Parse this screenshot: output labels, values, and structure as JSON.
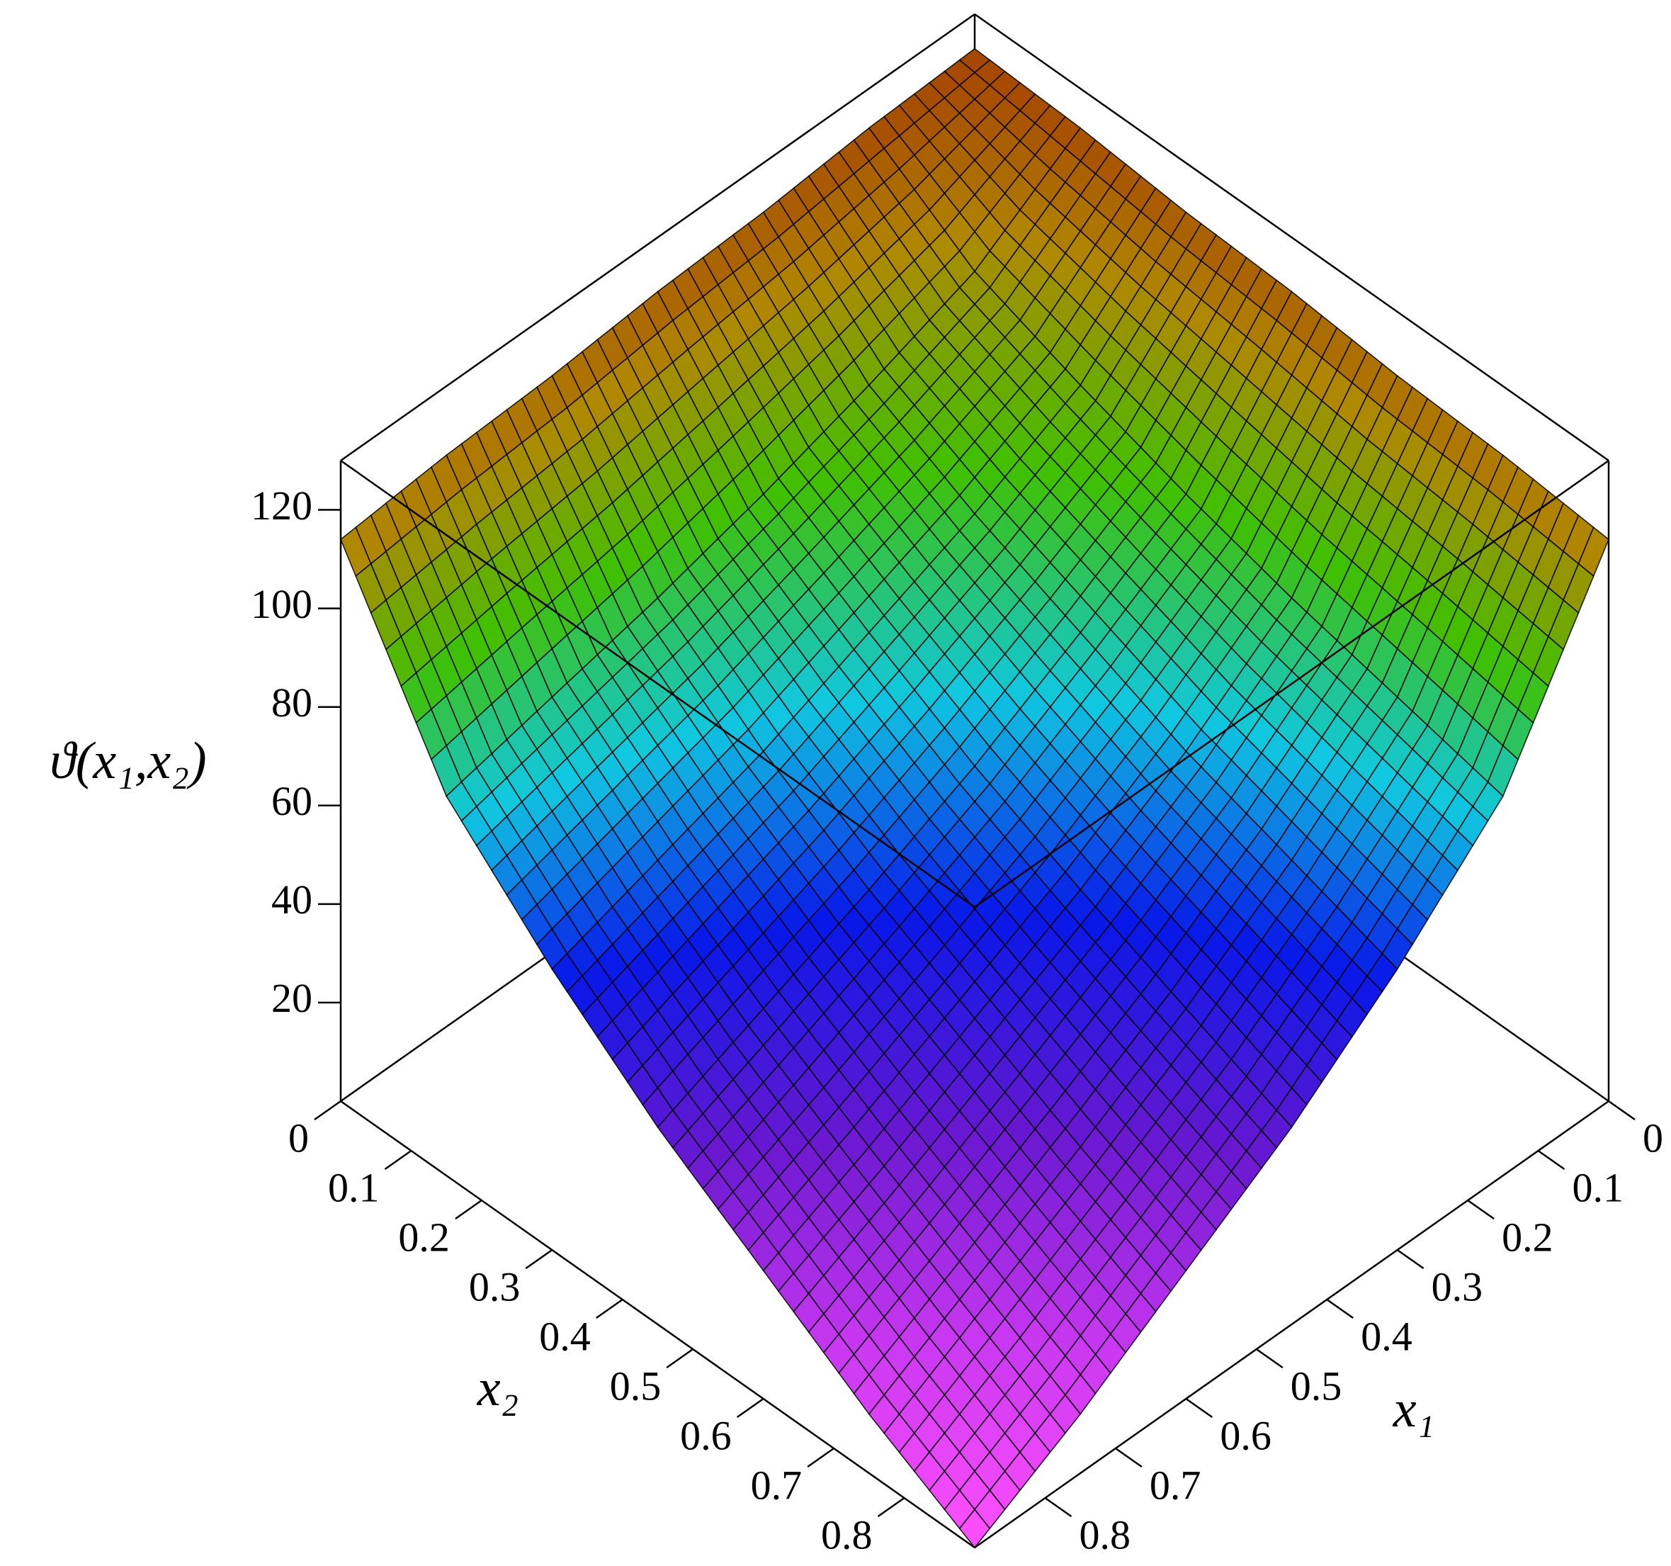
{
  "chart_data": {
    "type": "surface",
    "zlabel": "ϑ(x₁,x₂)",
    "x1label": "x₁",
    "x2label": "x₂",
    "x1": [
      0,
      0.15,
      0.3,
      0.45,
      0.6,
      0.75,
      0.9
    ],
    "x2": [
      0,
      0.15,
      0.3,
      0.45,
      0.6,
      0.75,
      0.9
    ],
    "z": [
      [
        123,
        122,
        120,
        119,
        117,
        116,
        114
      ],
      [
        122,
        108,
        100,
        93,
        87,
        82,
        77
      ],
      [
        120,
        100,
        89,
        80,
        71,
        64,
        57
      ],
      [
        119,
        93,
        80,
        68,
        58,
        49,
        40
      ],
      [
        117,
        87,
        71,
        58,
        47,
        36,
        26
      ],
      [
        116,
        82,
        64,
        49,
        36,
        24,
        12
      ],
      [
        114,
        77,
        57,
        40,
        26,
        12,
        0
      ]
    ],
    "x1lim": [
      0,
      0.9
    ],
    "x2lim": [
      0,
      0.9
    ],
    "zlim": [
      0,
      130
    ],
    "x1ticks": [
      0,
      0.1,
      0.2,
      0.3,
      0.4,
      0.5,
      0.6,
      0.7,
      0.8
    ],
    "x2ticks": [
      0,
      0.1,
      0.2,
      0.3,
      0.4,
      0.5,
      0.6,
      0.7,
      0.8
    ],
    "zticks": [
      20,
      40,
      60,
      80,
      100,
      120
    ],
    "colorscale": [
      "#ff50ff",
      "#c838f0",
      "#6818d0",
      "#0818e8",
      "#10c8e0",
      "#40c000",
      "#b08800",
      "#a02000"
    ],
    "mesh_color": "#000000"
  }
}
